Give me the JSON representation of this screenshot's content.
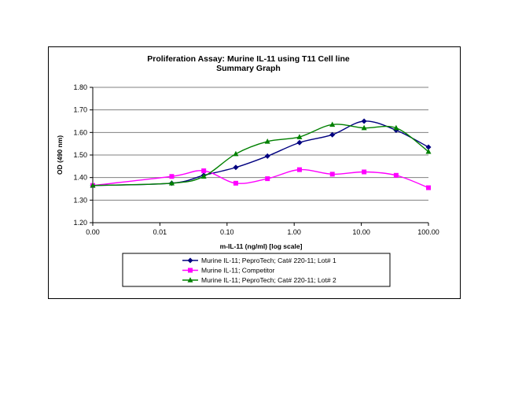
{
  "chart_data": {
    "type": "line",
    "title": "Proliferation Assay: Murine IL-11 using T11 Cell line",
    "subtitle": "Summary Graph",
    "xlabel": "m-IL-11 (ng/ml) [log scale]",
    "ylabel": "OD (490 nm)",
    "xscale": "log",
    "xlim": [
      0.001,
      100
    ],
    "ylim": [
      1.2,
      1.8
    ],
    "x_tick_labels": [
      "0.00",
      "0.01",
      "0.10",
      "1.00",
      "10.00",
      "100.00"
    ],
    "y_tick_labels": [
      "1.20",
      "1.30",
      "1.40",
      "1.50",
      "1.60",
      "1.70",
      "1.80"
    ],
    "grid": "horizontal",
    "legend_position": "bottom",
    "series": [
      {
        "name": "Murine IL-11; PeproTech; Cat# 220-11; Lot# 1",
        "color": "#000080",
        "marker": "diamond",
        "x": [
          0.001,
          0.015,
          0.045,
          0.135,
          0.4,
          1.2,
          3.7,
          11,
          33,
          100
        ],
        "y": [
          1.365,
          1.375,
          1.41,
          1.445,
          1.495,
          1.555,
          1.59,
          1.65,
          1.61,
          1.535
        ]
      },
      {
        "name": "Murine IL-11; Competitor",
        "color": "#FF00FF",
        "marker": "square",
        "x": [
          0.001,
          0.015,
          0.045,
          0.135,
          0.4,
          1.2,
          3.7,
          11,
          33,
          100
        ],
        "y": [
          1.365,
          1.405,
          1.43,
          1.375,
          1.395,
          1.435,
          1.415,
          1.425,
          1.41,
          1.355
        ]
      },
      {
        "name": "Murine IL-11; PeproTech; Cat# 220-11; Lot# 2",
        "color": "#008000",
        "marker": "triangle",
        "x": [
          0.001,
          0.015,
          0.045,
          0.135,
          0.4,
          1.2,
          3.7,
          11,
          33,
          100
        ],
        "y": [
          1.365,
          1.375,
          1.405,
          1.505,
          1.56,
          1.58,
          1.635,
          1.62,
          1.62,
          1.515
        ]
      }
    ]
  }
}
